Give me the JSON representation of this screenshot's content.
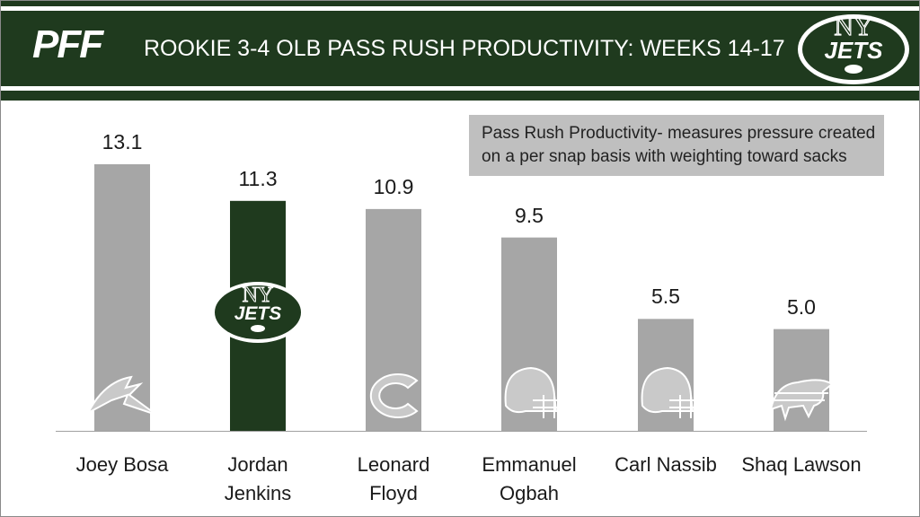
{
  "header": {
    "brand": "PFF",
    "title": "ROOKIE 3-4 OLB PASS RUSH PRODUCTIVITY:  WEEKS 14-17",
    "team_logo_text": "JETS",
    "colors": {
      "header_bg": "#1f3a1e",
      "highlight_bar": "#1f3a1e",
      "default_bar": "#a6a6a6"
    }
  },
  "note": {
    "line1": "Pass Rush Productivity- measures pressure created",
    "line2": "on a per snap basis with weighting toward sacks"
  },
  "chart_data": {
    "type": "bar",
    "title": "ROOKIE 3-4 OLB PASS RUSH PRODUCTIVITY:  WEEKS 14-17",
    "categories": [
      "Joey Bosa",
      "Jordan\nJenkins",
      "Leonard\nFloyd",
      "Emmanuel\nOgbah",
      "Carl Nassib",
      "Shaq Lawson"
    ],
    "values": [
      13.1,
      11.3,
      10.9,
      9.5,
      5.5,
      5.0
    ],
    "value_labels": [
      "13.1",
      "11.3",
      "10.9",
      "9.5",
      "5.5",
      "5.0"
    ],
    "highlight_index": 1,
    "team_icons": [
      "chargers-bolt-icon",
      "jets-logo-icon",
      "bears-c-icon",
      "browns-helmet-icon",
      "browns-helmet-icon",
      "bills-buffalo-icon"
    ],
    "xlabel": "",
    "ylabel": "",
    "ylim": [
      0,
      13.1
    ],
    "grid": false,
    "legend": "none"
  }
}
